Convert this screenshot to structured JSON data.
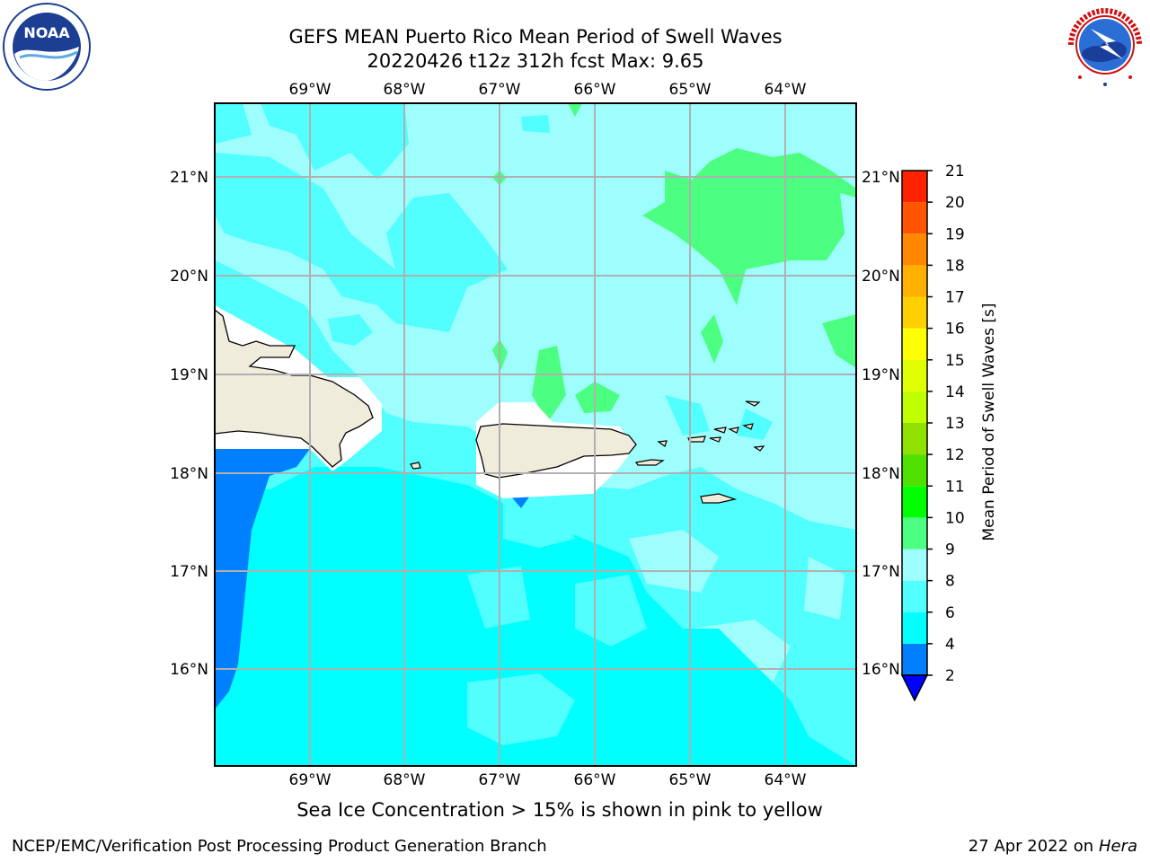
{
  "title": {
    "line1": "GEFS MEAN Puerto Rico Mean Period of Swell Waves",
    "line2": "20220426 t12z 312h fcst   Max: 9.65"
  },
  "map": {
    "lon_labels": [
      "69°W",
      "68°W",
      "67°W",
      "66°W",
      "65°W",
      "64°W"
    ],
    "lat_labels": [
      "21°N",
      "20°N",
      "19°N",
      "18°N",
      "17°N",
      "16°N"
    ],
    "background_color": "#9efefe",
    "land_color": "#efecdc",
    "grid_color": "#b0b0b0"
  },
  "colorbar": {
    "label": "Mean Period of Swell Waves [s]",
    "ticks": [
      "2",
      "4",
      "6",
      "8",
      "9",
      "10",
      "11",
      "12",
      "13",
      "14",
      "15",
      "16",
      "17",
      "18",
      "19",
      "20",
      "21"
    ],
    "colors": [
      "#0080ff",
      "#00ffff",
      "#50fffe",
      "#9efefe",
      "#4dff80",
      "#00ff00",
      "#50e000",
      "#90e000",
      "#c0ff00",
      "#e0ff00",
      "#ffff00",
      "#ffd000",
      "#ffb000",
      "#ff8800",
      "#ff5500",
      "#ff2200"
    ],
    "extend_color": "#0000ff"
  },
  "caption": "Sea Ice Concentration > 15% is shown in pink to yellow",
  "footer": {
    "left": "NCEP/EMC/Verification Post Processing Product Generation Branch",
    "date": "27 Apr 2022 on ",
    "host": "Hera"
  },
  "logos": {
    "noaa_text": "NOAA",
    "nws_text": "NATIONAL WEATHER SERVICE"
  }
}
